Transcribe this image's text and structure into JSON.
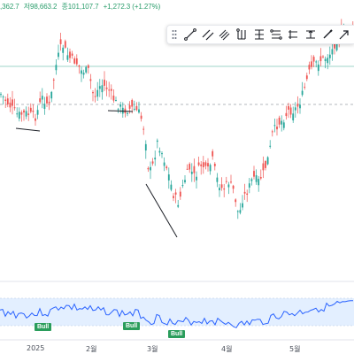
{
  "ohlc": {
    "high": ",362.7",
    "low_label": "저98,663.2",
    "close_label": "종101,107.7",
    "change": "+1,272.3 (+1.27%)"
  },
  "colors": {
    "up": "#26a69a",
    "down": "#ef5350",
    "rsi_line": "#2962ff",
    "rsi_band": "#e3efff",
    "bull": "#2a9d5c",
    "pattern": "#1c1f26"
  },
  "toolbar": {
    "tools": [
      "drag-handle-icon",
      "trend-line-icon",
      "parallel-channel-icon",
      "regression-channel-icon",
      "pitchfork-icon",
      "fib-retracement-icon",
      "long-position-icon",
      "range-icon",
      "price-range-icon",
      "brush-icon",
      "arrow-icon"
    ]
  },
  "x_axis": {
    "labels": [
      "2025",
      "2월",
      "3월",
      "4월",
      "5월"
    ]
  },
  "signals": {
    "bull_label": "Bull"
  }
}
